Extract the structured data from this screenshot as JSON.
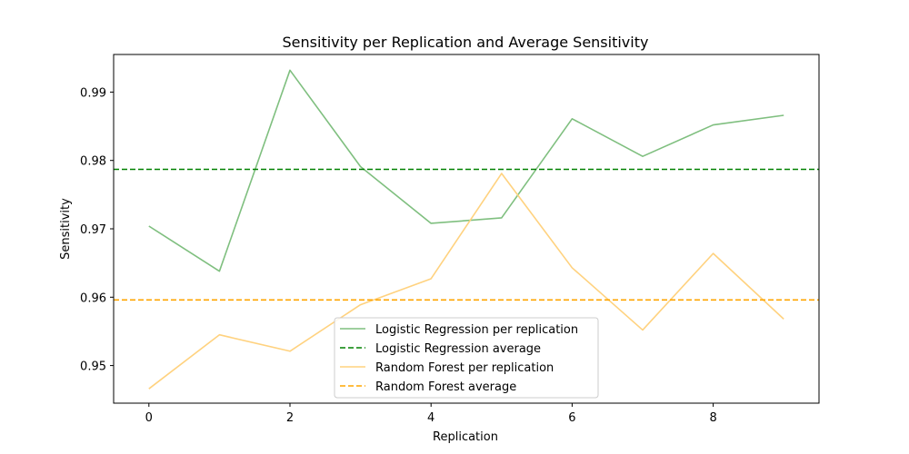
{
  "chart_data": {
    "type": "line",
    "title": "Sensitivity per Replication and Average Sensitivity",
    "xlabel": "Replication",
    "ylabel": "Sensitivity",
    "xlim": [
      -0.5,
      9.5
    ],
    "ylim": [
      0.9445,
      0.9955
    ],
    "xticks": [
      0,
      2,
      4,
      6,
      8
    ],
    "yticks": [
      0.95,
      0.96,
      0.97,
      0.98,
      0.99
    ],
    "ytick_labels": [
      "0.95",
      "0.96",
      "0.97",
      "0.98",
      "0.99"
    ],
    "grid": false,
    "legend_position": "lower-center",
    "series": [
      {
        "name": "Logistic Regression per replication",
        "style": "solid",
        "color": "#7fbf7f",
        "x": [
          0,
          1,
          2,
          3,
          4,
          5,
          6,
          7,
          8,
          9
        ],
        "values": [
          0.9704,
          0.9638,
          0.9932,
          0.9791,
          0.9708,
          0.9716,
          0.9861,
          0.9806,
          0.9852,
          0.9866
        ]
      },
      {
        "name": "Logistic Regression average",
        "style": "dashed",
        "color": "#008000",
        "values": [
          0.9787
        ]
      },
      {
        "name": "Random Forest per replication",
        "style": "solid",
        "color": "#ffd27f",
        "x": [
          0,
          1,
          2,
          3,
          4,
          5,
          6,
          7,
          8,
          9
        ],
        "values": [
          0.9466,
          0.9545,
          0.9521,
          0.9589,
          0.9627,
          0.9781,
          0.9643,
          0.9552,
          0.9664,
          0.9568
        ]
      },
      {
        "name": "Random Forest average",
        "style": "dashed",
        "color": "#ffa500",
        "values": [
          0.9596
        ]
      }
    ]
  }
}
